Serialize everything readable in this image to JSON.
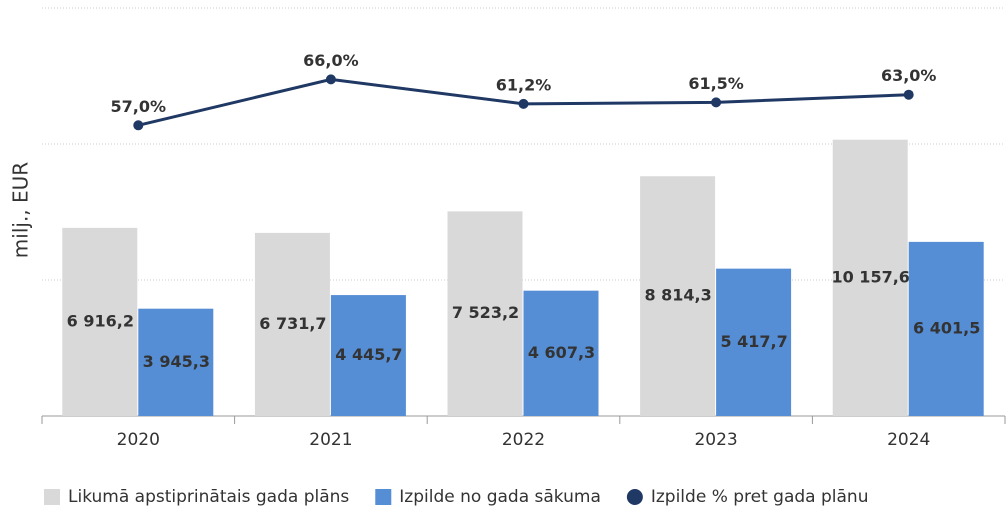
{
  "chart_data": {
    "type": "bar+line",
    "y_label": "milj., EUR",
    "categories": [
      "2020",
      "2021",
      "2022",
      "2023",
      "2024"
    ],
    "ylim": [
      0,
      15000
    ],
    "yticks": [
      0,
      5000,
      10000,
      15000
    ],
    "grid": true,
    "y2lim": [
      0,
      80
    ],
    "series": [
      {
        "name": "Likumā apstiprinātais gada plāns",
        "color": "#d9d9d9",
        "kind": "bar",
        "values": [
          6916.2,
          6731.7,
          7523.2,
          8814.3,
          10157.6
        ],
        "value_labels": [
          "6 916,2",
          "6 731,7",
          "7 523,2",
          "8 814,3",
          "10 157,6"
        ]
      },
      {
        "name": "Izpilde no gada sākuma",
        "color": "#558ed5",
        "kind": "bar",
        "values": [
          3945.3,
          4445.7,
          4607.3,
          5417.7,
          6401.5
        ],
        "value_labels": [
          "3 945,3",
          "4 445,7",
          "4 607,3",
          "5 417,7",
          "6 401,5"
        ]
      },
      {
        "name": "Izpilde % pret gada plānu",
        "color": "#1f3864",
        "kind": "line",
        "axis": "y2",
        "values": [
          57.0,
          66.0,
          61.2,
          61.5,
          63.0
        ],
        "value_labels": [
          "57,0%",
          "66,0%",
          "61,2%",
          "61,5%",
          "63,0%"
        ]
      }
    ],
    "legend": "bottom"
  }
}
